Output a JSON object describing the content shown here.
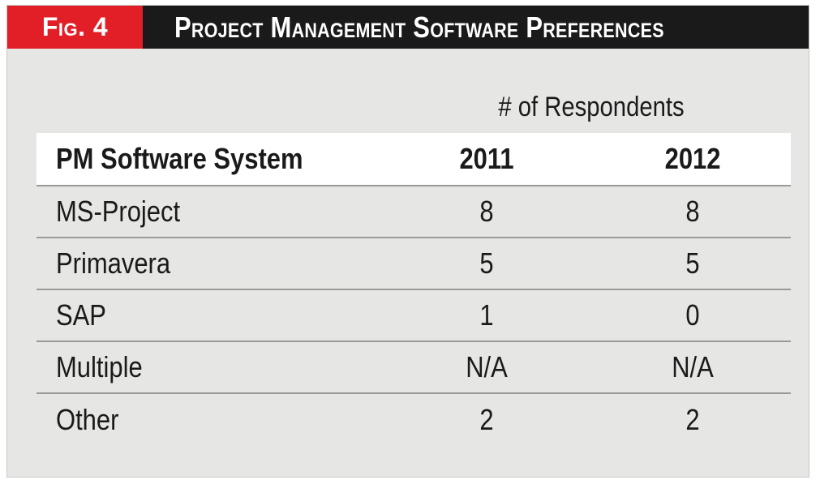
{
  "figure": {
    "label": "Fig. 4",
    "title": "Project Management Software Preferences"
  },
  "colors": {
    "label_bg": "#e21e26",
    "title_bg": "#1a1a1a",
    "panel_bg": "#e6e6e4"
  },
  "chart_data": {
    "type": "table",
    "title": "Project Management Software Preferences",
    "super_header": "# of Respondents",
    "columns": [
      "PM Software System",
      "2011",
      "2012"
    ],
    "rows": [
      {
        "system": "MS-Project",
        "2011": "8",
        "2012": "8"
      },
      {
        "system": "Primavera",
        "2011": "5",
        "2012": "5"
      },
      {
        "system": "SAP",
        "2011": "1",
        "2012": "0"
      },
      {
        "system": "Multiple",
        "2011": "N/A",
        "2012": "N/A"
      },
      {
        "system": "Other",
        "2011": "2",
        "2012": "2"
      }
    ]
  }
}
